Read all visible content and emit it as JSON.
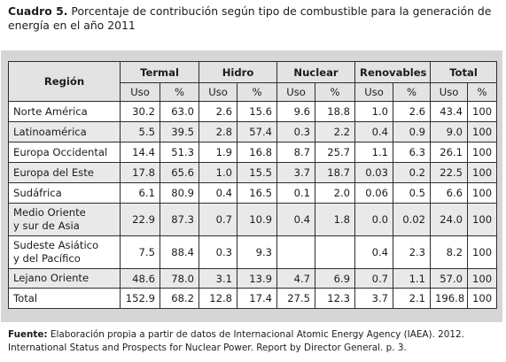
{
  "caption": {
    "label": "Cuadro 5.",
    "text": "Porcentaje de contribución según tipo de combustible para la generación de energía en el año 2011"
  },
  "table": {
    "region_header": "Región",
    "groups": [
      "Termal",
      "Hidro",
      "Nuclear",
      "Renovables",
      "Total"
    ],
    "subheaders": [
      "Uso",
      "%"
    ],
    "rows": [
      {
        "region": "Norte América",
        "values": [
          "30.2",
          "63.0",
          "2.6",
          "15.6",
          "9.6",
          "18.8",
          "1.0",
          "2.6",
          "43.4",
          "100"
        ]
      },
      {
        "region": "Latinoamérica",
        "values": [
          "5.5",
          "39.5",
          "2.8",
          "57.4",
          "0.3",
          "2.2",
          "0.4",
          "0.9",
          "9.0",
          "100"
        ]
      },
      {
        "region": "Europa Occidental",
        "values": [
          "14.4",
          "51.3",
          "1.9",
          "16.8",
          "8.7",
          "25.7",
          "1.1",
          "6.3",
          "26.1",
          "100"
        ]
      },
      {
        "region": "Europa del Este",
        "values": [
          "17.8",
          "65.6",
          "1.0",
          "15.5",
          "3.7",
          "18.7",
          "0.03",
          "0.2",
          "22.5",
          "100"
        ]
      },
      {
        "region": "Sudáfrica",
        "values": [
          "6.1",
          "80.9",
          "0.4",
          "16.5",
          "0.1",
          "2.0",
          "0.06",
          "0.5",
          "6.6",
          "100"
        ]
      },
      {
        "region": "Medio Oriente\ny sur de Asia",
        "values": [
          "22.9",
          "87.3",
          "0.7",
          "10.9",
          "0.4",
          "1.8",
          "0.0",
          "0.02",
          "24.0",
          "100"
        ]
      },
      {
        "region": "Sudeste Asiático\ny del Pacífico",
        "values": [
          "7.5",
          "88.4",
          "0.3",
          "9.3",
          "",
          "",
          "0.4",
          "2.3",
          "8.2",
          "100"
        ]
      },
      {
        "region": "Lejano Oriente",
        "values": [
          "48.6",
          "78.0",
          "3.1",
          "13.9",
          "4.7",
          "6.9",
          "0.7",
          "1.1",
          "57.0",
          "100"
        ]
      },
      {
        "region": "Total",
        "values": [
          "152.9",
          "68.2",
          "12.8",
          "17.4",
          "27.5",
          "12.3",
          "3.7",
          "2.1",
          "196.8",
          "100"
        ]
      }
    ]
  },
  "source": {
    "label": "Fuente:",
    "text": "Elaboración propia a partir de datos de Internacional Atomic Energy Agency (IAEA). 2012. International Status and Prospects for Nuclear Power. Report by Director General. p. 3."
  }
}
